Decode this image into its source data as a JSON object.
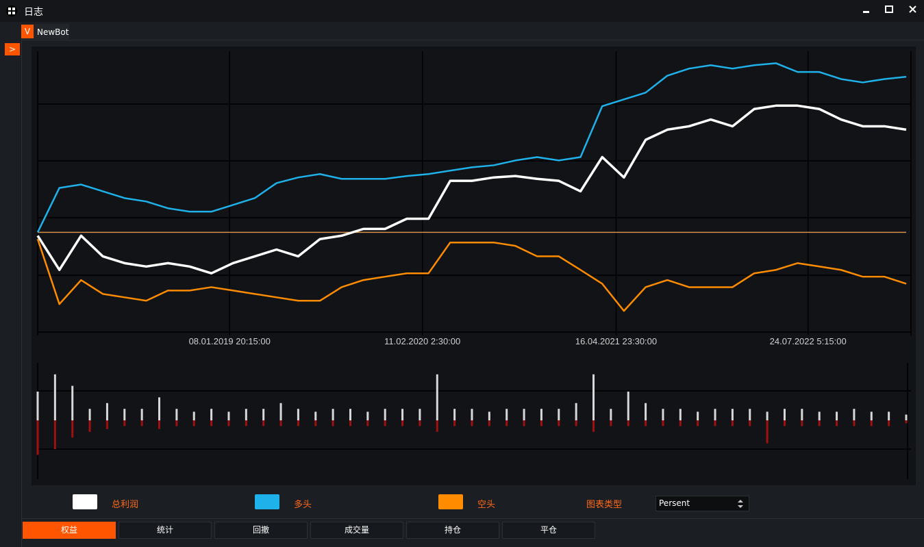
{
  "window": {
    "title": "日志"
  },
  "tab": {
    "icon": "V",
    "label": "NewBot"
  },
  "toggle": ">",
  "chart_data": [
    {
      "type": "line",
      "x": [
        0,
        2.5,
        5,
        7.5,
        10,
        12.5,
        15,
        17.5,
        20,
        22.5,
        25,
        27.5,
        30,
        32.5,
        35,
        37.5,
        40,
        42.5,
        45,
        47.5,
        50,
        52.5,
        55,
        57.5,
        60,
        62.5,
        65,
        67.5,
        70,
        72.5,
        75,
        77.5,
        80,
        82.5,
        85,
        87.5,
        90,
        92.5,
        95,
        97.5,
        100
      ],
      "xlim": [
        0,
        100
      ],
      "xticks": [
        {
          "value": 22.1,
          "label": "08.01.2019 20:15:00"
        },
        {
          "value": 44.3,
          "label": "11.02.2020 2:30:00"
        },
        {
          "value": 66.6,
          "label": "16.04.2021 23:30:00"
        },
        {
          "value": 88.7,
          "label": "24.07.2022 5:15:00"
        }
      ],
      "ylim": [
        -36,
        64
      ],
      "reference_line": {
        "value": 0,
        "color": "#d9924a"
      },
      "series": [
        {
          "name": "总利润",
          "color": "#ffffff",
          "values": [
            -1.2,
            -13.3,
            -1.2,
            -8.5,
            -10.9,
            -12.1,
            -10.9,
            -12.1,
            -14.5,
            -10.9,
            -8.5,
            -6.1,
            -8.5,
            -2.4,
            -1.2,
            1.2,
            1.2,
            4.8,
            4.8,
            18.2,
            18.2,
            19.4,
            19.9,
            18.9,
            18.2,
            14.5,
            26.6,
            19.4,
            32.7,
            36.3,
            37.5,
            39.9,
            37.5,
            43.6,
            44.8,
            44.8,
            43.6,
            39.9,
            37.5,
            37.5,
            36.3
          ]
        },
        {
          "name": "多头",
          "color": "#1fb2ea",
          "values": [
            0,
            15.7,
            16.9,
            14.5,
            12.1,
            10.9,
            8.5,
            7.3,
            7.3,
            9.7,
            12.1,
            17.4,
            19.4,
            20.6,
            18.9,
            18.9,
            18.9,
            19.9,
            20.6,
            21.8,
            23.0,
            23.7,
            25.4,
            26.6,
            25.4,
            26.6,
            44.6,
            47.0,
            49.4,
            55.4,
            57.9,
            59.1,
            57.9,
            59.1,
            59.8,
            56.7,
            56.7,
            54.2,
            53.0,
            54.2,
            55.0
          ]
        },
        {
          "name": "空头",
          "color": "#ff8c00",
          "values": [
            -2.4,
            -25.4,
            -16.9,
            -21.8,
            -23.0,
            -24.2,
            -20.6,
            -20.6,
            -19.4,
            -20.6,
            -21.8,
            -23.0,
            -24.2,
            -24.2,
            -19.4,
            -16.9,
            -15.7,
            -14.5,
            -14.5,
            -3.6,
            -3.6,
            -3.6,
            -4.8,
            -8.5,
            -8.5,
            -13.3,
            -18.2,
            -27.8,
            -19.4,
            -16.9,
            -19.4,
            -19.4,
            -19.4,
            -14.5,
            -13.3,
            -10.9,
            -12.1,
            -13.3,
            -15.7,
            -15.7,
            -18.2
          ]
        }
      ]
    },
    {
      "type": "bar",
      "x": [
        0,
        2,
        4,
        6,
        8,
        10,
        12,
        14,
        16,
        18,
        20,
        22,
        24,
        26,
        28,
        30,
        32,
        34,
        36,
        38,
        40,
        42,
        44,
        46,
        48,
        50,
        52,
        54,
        56,
        58,
        60,
        62,
        64,
        66,
        68,
        70,
        72,
        74,
        76,
        78,
        80,
        82,
        84,
        86,
        88,
        90,
        92,
        94,
        96,
        98,
        100
      ],
      "xlim": [
        0,
        100
      ],
      "ylim": [
        -10,
        10
      ],
      "series": [
        {
          "color": "#d8d8d8",
          "values": [
            5,
            8,
            6,
            2,
            3,
            2,
            2,
            4,
            2,
            1.5,
            2,
            1.5,
            2,
            2,
            3,
            2,
            1.5,
            2,
            2,
            1.5,
            2,
            2,
            2,
            8,
            2,
            2,
            1.5,
            2,
            2,
            2,
            2,
            3,
            8,
            2,
            5,
            3,
            2,
            2,
            1.5,
            2,
            2,
            2,
            1.5,
            2,
            2,
            1.5,
            1.5,
            2,
            1.5,
            1.5,
            1
          ]
        },
        {
          "color": "#a01010",
          "values": [
            -6,
            -5,
            -3,
            -2,
            -1.5,
            -1,
            -1,
            -1.5,
            -1,
            -1,
            -1,
            -1,
            -1,
            -1,
            -1,
            -1,
            -1,
            -1,
            -1,
            -1,
            -1,
            -1,
            -1,
            -2,
            -1,
            -1,
            -1,
            -1,
            -1,
            -1,
            -1,
            -1,
            -2,
            -1,
            -1,
            -1,
            -1,
            -1,
            -1,
            -1,
            -1,
            -1,
            -4,
            -1,
            -1,
            -1,
            -1,
            -1,
            -1,
            -1,
            -0.5
          ]
        }
      ]
    }
  ],
  "controls": {
    "chart_type_label": "图表类型",
    "chart_type_value": "Persent"
  },
  "bottom_tabs": [
    "权益",
    "统计",
    "回撤",
    "成交量",
    "持仓",
    "平仓"
  ]
}
